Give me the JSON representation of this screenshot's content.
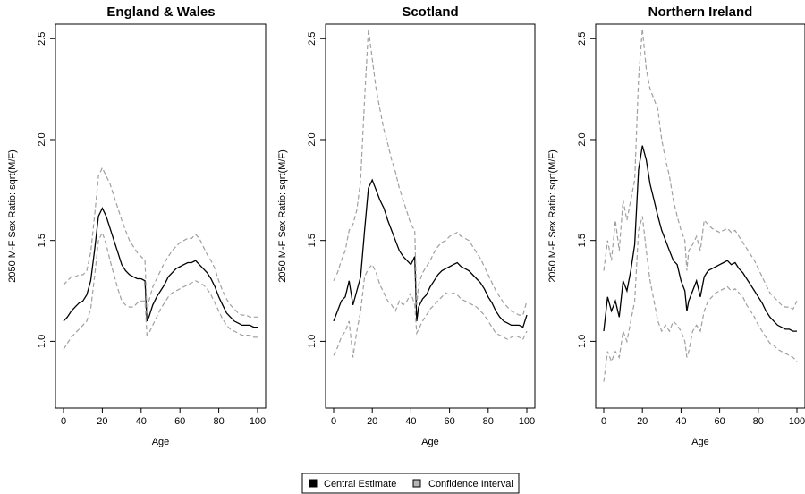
{
  "legend": {
    "entries": [
      {
        "label": "Central Estimate",
        "color": "#000000",
        "style": "solid"
      },
      {
        "label": "Confidence Interval",
        "color": "#a0a0a0",
        "style": "dashed"
      }
    ],
    "placement": "bottom-center"
  },
  "chart_data": [
    {
      "type": "line",
      "title": "England & Wales",
      "xlabel": "Age",
      "ylabel": "2050 M-F Sex Ratio: sqrt(M/F)",
      "xlim": [
        0,
        100
      ],
      "ylim": [
        0.74,
        2.55
      ],
      "xticks": [
        "0",
        "20",
        "40",
        "60",
        "80",
        "100"
      ],
      "yticks": [
        "1.0",
        "1.5",
        "2.0",
        "2.5"
      ],
      "grid": false,
      "x": [
        0,
        2,
        4,
        6,
        8,
        10,
        12,
        14,
        16,
        18,
        20,
        22,
        24,
        26,
        28,
        30,
        32,
        34,
        36,
        38,
        40,
        42,
        43,
        44,
        46,
        48,
        50,
        52,
        54,
        56,
        58,
        60,
        62,
        64,
        66,
        68,
        70,
        72,
        74,
        76,
        78,
        80,
        82,
        84,
        86,
        88,
        90,
        92,
        94,
        96,
        98,
        100
      ],
      "series": [
        {
          "name": "Central Estimate",
          "values": [
            1.1,
            1.12,
            1.15,
            1.17,
            1.19,
            1.2,
            1.23,
            1.3,
            1.45,
            1.62,
            1.66,
            1.62,
            1.56,
            1.5,
            1.44,
            1.38,
            1.35,
            1.33,
            1.32,
            1.31,
            1.31,
            1.3,
            1.1,
            1.12,
            1.18,
            1.22,
            1.25,
            1.28,
            1.32,
            1.34,
            1.36,
            1.37,
            1.38,
            1.39,
            1.39,
            1.4,
            1.38,
            1.36,
            1.34,
            1.31,
            1.27,
            1.22,
            1.18,
            1.14,
            1.12,
            1.1,
            1.09,
            1.08,
            1.08,
            1.08,
            1.07,
            1.07
          ]
        },
        {
          "name": "Confidence Interval",
          "values": [
            0.96,
            0.99,
            1.02,
            1.04,
            1.06,
            1.08,
            1.1,
            1.16,
            1.32,
            1.5,
            1.54,
            1.48,
            1.4,
            1.33,
            1.26,
            1.2,
            1.18,
            1.17,
            1.17,
            1.19,
            1.2,
            1.2,
            1.03,
            1.04,
            1.08,
            1.12,
            1.16,
            1.19,
            1.22,
            1.24,
            1.25,
            1.26,
            1.27,
            1.28,
            1.29,
            1.3,
            1.29,
            1.28,
            1.26,
            1.23,
            1.19,
            1.15,
            1.11,
            1.08,
            1.06,
            1.05,
            1.04,
            1.03,
            1.03,
            1.03,
            1.02,
            1.02
          ]
        },
        {
          "name": "Confidence Interval",
          "values": [
            1.28,
            1.3,
            1.32,
            1.32,
            1.33,
            1.33,
            1.35,
            1.44,
            1.62,
            1.82,
            1.86,
            1.82,
            1.78,
            1.72,
            1.66,
            1.6,
            1.55,
            1.5,
            1.47,
            1.44,
            1.42,
            1.4,
            1.14,
            1.2,
            1.27,
            1.31,
            1.35,
            1.39,
            1.42,
            1.45,
            1.47,
            1.49,
            1.5,
            1.51,
            1.51,
            1.53,
            1.51,
            1.47,
            1.43,
            1.4,
            1.36,
            1.3,
            1.25,
            1.21,
            1.18,
            1.16,
            1.14,
            1.13,
            1.13,
            1.12,
            1.12,
            1.12
          ]
        }
      ]
    },
    {
      "type": "line",
      "title": "Scotland",
      "xlabel": "Age",
      "ylabel": "2050 M-F Sex Ratio: sqrt(M/F)",
      "xlim": [
        0,
        100
      ],
      "ylim": [
        0.74,
        2.55
      ],
      "xticks": [
        "0",
        "20",
        "40",
        "60",
        "80",
        "100"
      ],
      "yticks": [
        "1.0",
        "1.5",
        "2.0",
        "2.5"
      ],
      "grid": false,
      "x": [
        0,
        2,
        4,
        6,
        8,
        10,
        12,
        14,
        16,
        18,
        20,
        22,
        24,
        26,
        28,
        30,
        32,
        34,
        36,
        38,
        40,
        42,
        43,
        44,
        46,
        48,
        50,
        52,
        54,
        56,
        58,
        60,
        62,
        64,
        66,
        68,
        70,
        72,
        74,
        76,
        78,
        80,
        82,
        84,
        86,
        88,
        90,
        92,
        94,
        96,
        98,
        100
      ],
      "series": [
        {
          "name": "Central Estimate",
          "values": [
            1.1,
            1.15,
            1.2,
            1.22,
            1.3,
            1.18,
            1.25,
            1.32,
            1.55,
            1.76,
            1.8,
            1.75,
            1.7,
            1.66,
            1.6,
            1.55,
            1.5,
            1.45,
            1.42,
            1.4,
            1.38,
            1.42,
            1.1,
            1.17,
            1.21,
            1.23,
            1.27,
            1.3,
            1.33,
            1.35,
            1.36,
            1.37,
            1.38,
            1.39,
            1.37,
            1.36,
            1.35,
            1.33,
            1.31,
            1.29,
            1.26,
            1.22,
            1.19,
            1.15,
            1.12,
            1.1,
            1.09,
            1.08,
            1.08,
            1.08,
            1.07,
            1.13
          ]
        },
        {
          "name": "Confidence Interval",
          "values": [
            0.93,
            0.97,
            1.02,
            1.05,
            1.1,
            0.92,
            1.05,
            1.15,
            1.32,
            1.36,
            1.38,
            1.34,
            1.28,
            1.24,
            1.2,
            1.18,
            1.15,
            1.2,
            1.18,
            1.2,
            1.24,
            1.18,
            1.04,
            1.06,
            1.1,
            1.13,
            1.16,
            1.18,
            1.2,
            1.22,
            1.24,
            1.23,
            1.24,
            1.23,
            1.21,
            1.2,
            1.19,
            1.18,
            1.17,
            1.15,
            1.13,
            1.1,
            1.07,
            1.04,
            1.03,
            1.02,
            1.01,
            1.02,
            1.03,
            1.02,
            1.01,
            1.05
          ]
        },
        {
          "name": "Confidence Interval",
          "values": [
            1.3,
            1.34,
            1.4,
            1.45,
            1.55,
            1.58,
            1.65,
            1.8,
            2.2,
            2.55,
            2.4,
            2.25,
            2.15,
            2.05,
            1.98,
            1.9,
            1.84,
            1.76,
            1.7,
            1.64,
            1.58,
            1.55,
            1.18,
            1.28,
            1.34,
            1.37,
            1.4,
            1.44,
            1.47,
            1.49,
            1.5,
            1.52,
            1.53,
            1.54,
            1.52,
            1.51,
            1.5,
            1.47,
            1.44,
            1.41,
            1.37,
            1.33,
            1.29,
            1.25,
            1.22,
            1.19,
            1.17,
            1.15,
            1.14,
            1.13,
            1.13,
            1.2
          ]
        }
      ]
    },
    {
      "type": "line",
      "title": "Northern Ireland",
      "xlabel": "Age",
      "ylabel": "2050 M-F Sex Ratio: sqrt(M/F)",
      "xlim": [
        0,
        100
      ],
      "ylim": [
        0.74,
        2.55
      ],
      "xticks": [
        "0",
        "20",
        "40",
        "60",
        "80",
        "100"
      ],
      "yticks": [
        "1.0",
        "1.5",
        "2.0",
        "2.5"
      ],
      "grid": false,
      "x": [
        0,
        2,
        4,
        6,
        8,
        10,
        12,
        14,
        16,
        18,
        20,
        22,
        24,
        26,
        28,
        30,
        32,
        34,
        36,
        38,
        40,
        42,
        43,
        44,
        46,
        48,
        50,
        52,
        54,
        56,
        58,
        60,
        62,
        64,
        66,
        68,
        70,
        72,
        74,
        76,
        78,
        80,
        82,
        84,
        86,
        88,
        90,
        92,
        94,
        96,
        98,
        100
      ],
      "series": [
        {
          "name": "Central Estimate",
          "values": [
            1.05,
            1.22,
            1.15,
            1.2,
            1.12,
            1.3,
            1.25,
            1.35,
            1.48,
            1.85,
            1.97,
            1.9,
            1.78,
            1.7,
            1.62,
            1.55,
            1.5,
            1.45,
            1.4,
            1.38,
            1.3,
            1.25,
            1.15,
            1.2,
            1.25,
            1.3,
            1.22,
            1.32,
            1.35,
            1.36,
            1.37,
            1.38,
            1.39,
            1.4,
            1.38,
            1.39,
            1.36,
            1.34,
            1.31,
            1.28,
            1.25,
            1.22,
            1.19,
            1.15,
            1.12,
            1.1,
            1.08,
            1.07,
            1.06,
            1.06,
            1.05,
            1.05
          ]
        },
        {
          "name": "Confidence Interval",
          "values": [
            0.8,
            0.95,
            0.9,
            0.95,
            0.92,
            1.05,
            1.0,
            1.1,
            1.2,
            1.55,
            1.62,
            1.45,
            1.3,
            1.2,
            1.1,
            1.05,
            1.08,
            1.05,
            1.1,
            1.08,
            1.05,
            1.0,
            0.92,
            0.95,
            1.05,
            1.08,
            1.05,
            1.15,
            1.2,
            1.22,
            1.24,
            1.25,
            1.26,
            1.27,
            1.25,
            1.26,
            1.24,
            1.22,
            1.18,
            1.15,
            1.12,
            1.08,
            1.05,
            1.02,
            0.99,
            0.98,
            0.96,
            0.95,
            0.94,
            0.93,
            0.92,
            0.9
          ]
        },
        {
          "name": "Confidence Interval",
          "values": [
            1.35,
            1.5,
            1.4,
            1.6,
            1.45,
            1.7,
            1.6,
            1.7,
            1.8,
            2.3,
            2.55,
            2.35,
            2.25,
            2.2,
            2.15,
            2.0,
            1.9,
            1.82,
            1.7,
            1.62,
            1.55,
            1.5,
            1.35,
            1.45,
            1.48,
            1.52,
            1.45,
            1.6,
            1.58,
            1.56,
            1.55,
            1.54,
            1.55,
            1.56,
            1.54,
            1.55,
            1.52,
            1.49,
            1.46,
            1.43,
            1.4,
            1.36,
            1.32,
            1.28,
            1.24,
            1.22,
            1.2,
            1.18,
            1.17,
            1.17,
            1.16,
            1.2
          ]
        }
      ]
    }
  ]
}
